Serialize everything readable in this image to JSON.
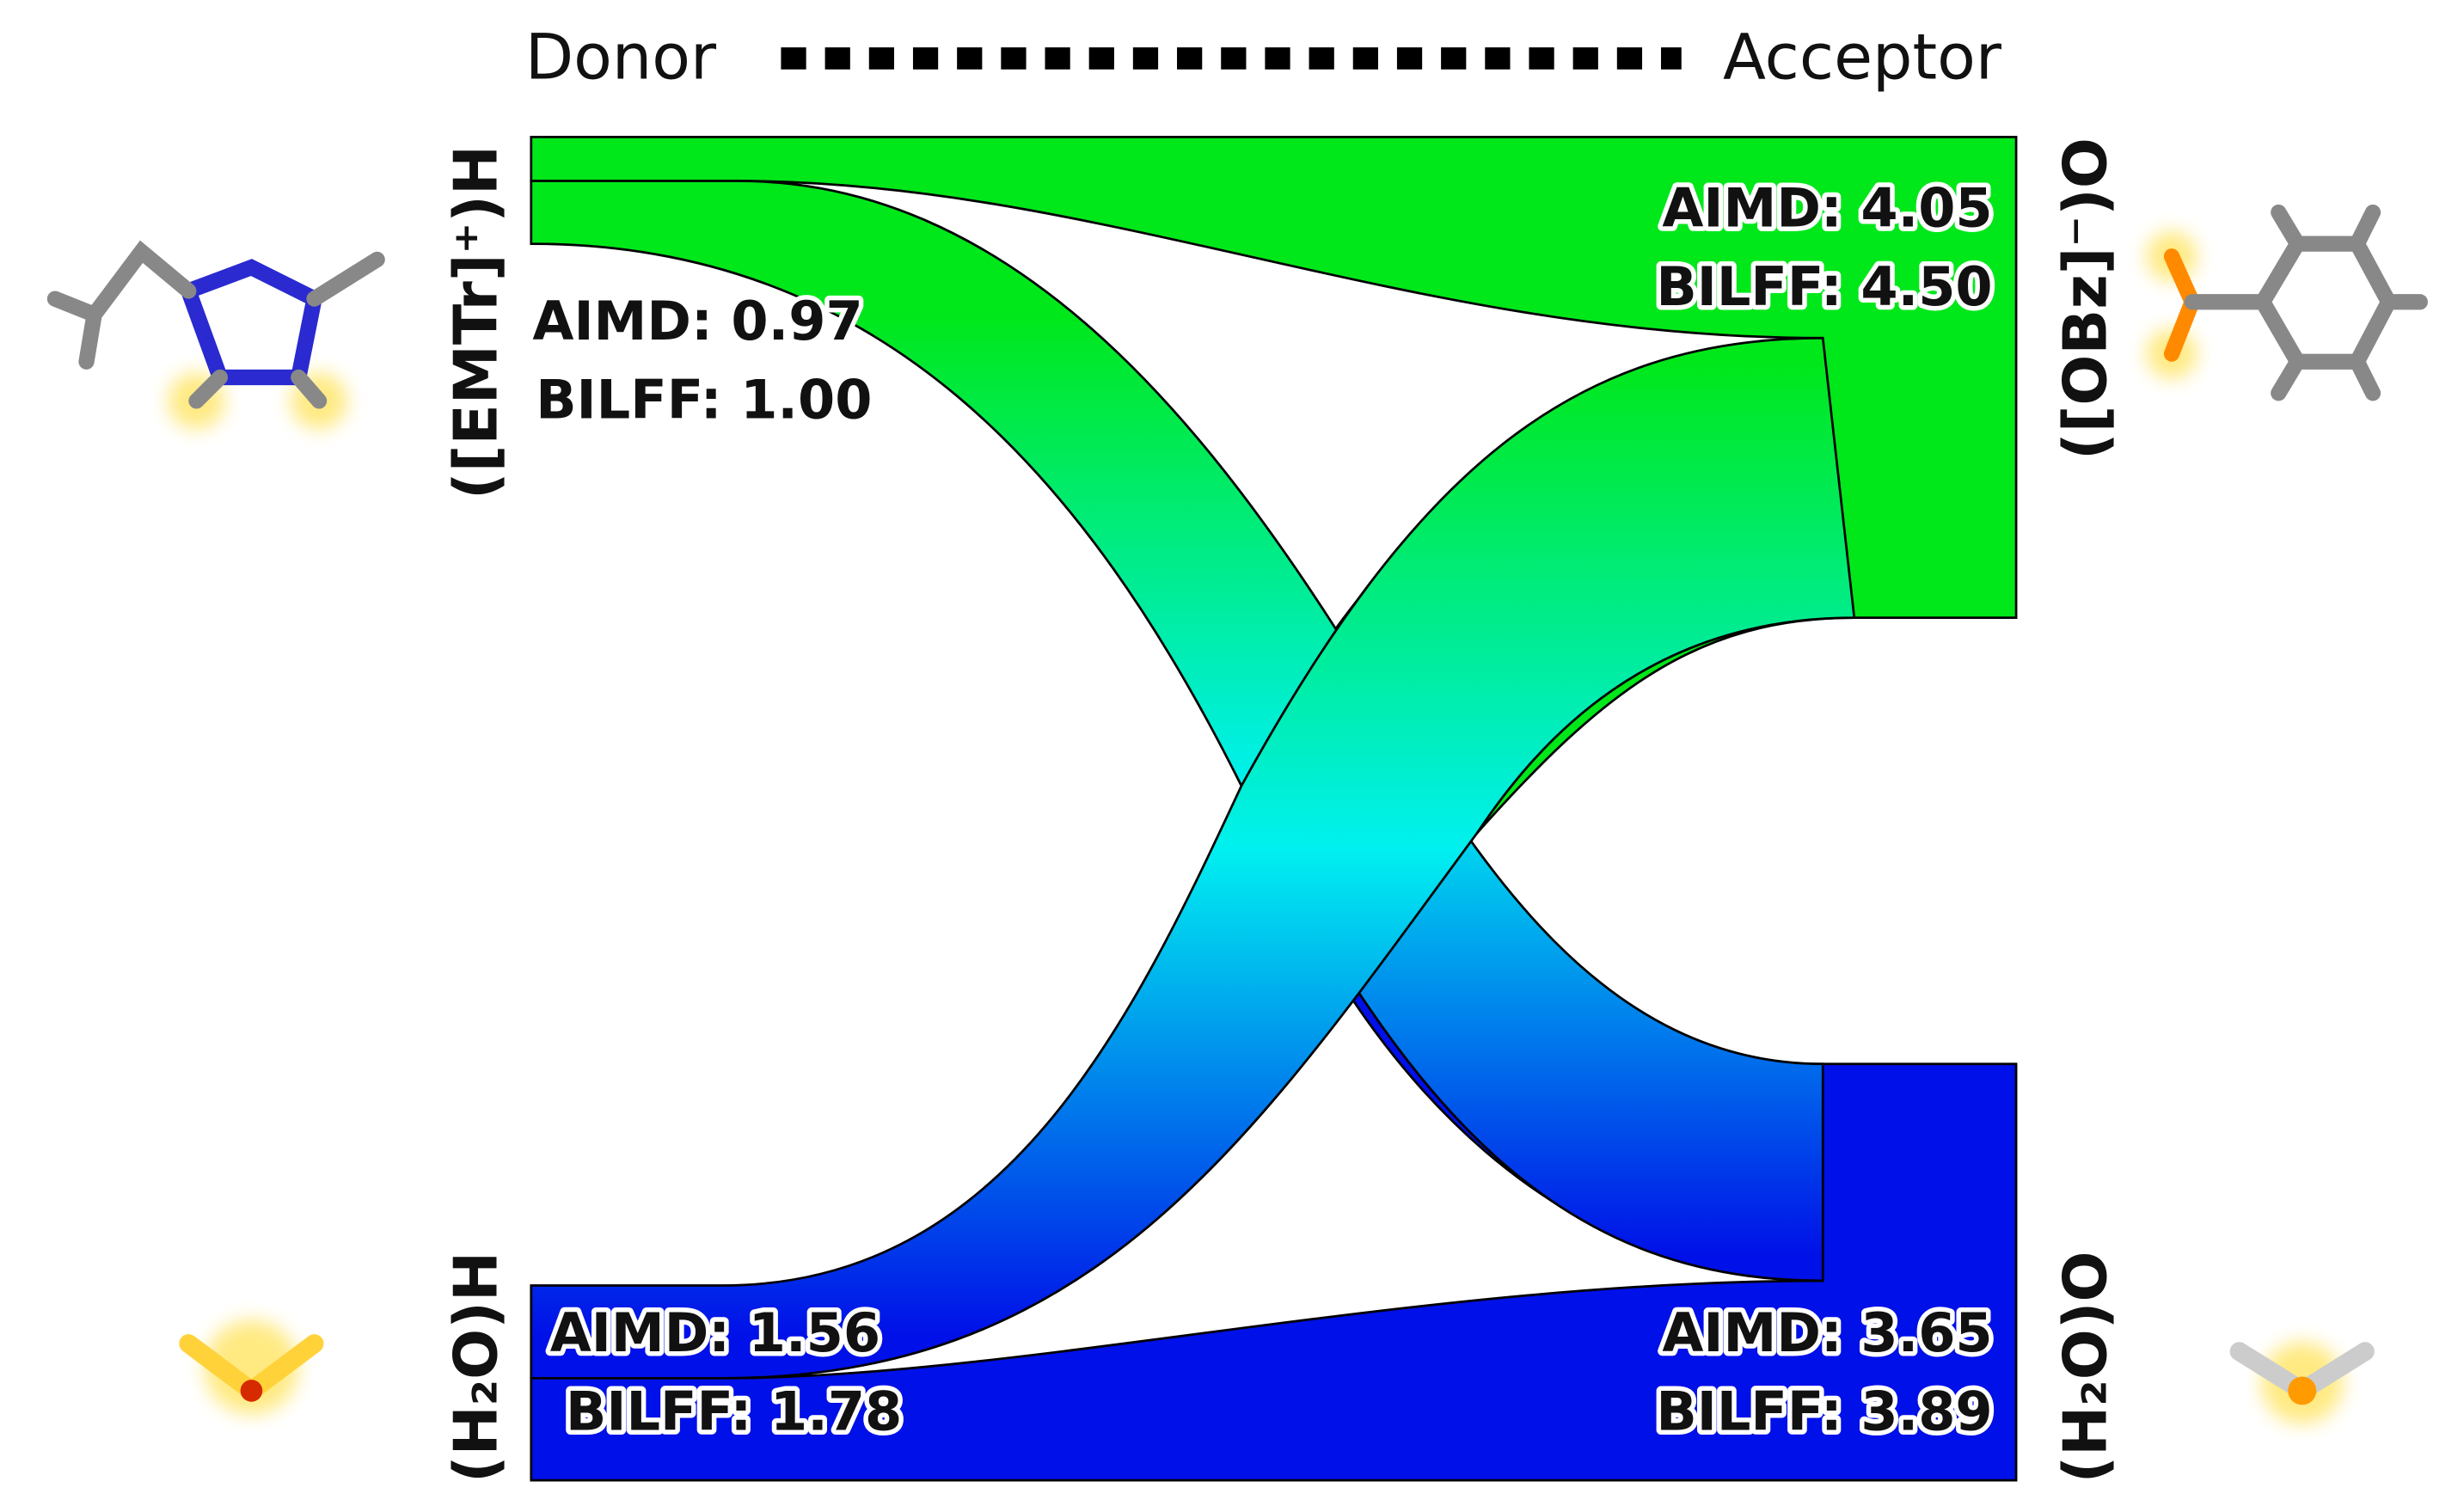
{
  "header": {
    "left": "Donor",
    "right": "Acceptor"
  },
  "nodes": [
    {
      "label": "([EMTr]⁺)H",
      "aimd": "AIMD: 0.97",
      "bilff": "BILFF: 1.00"
    },
    {
      "label": "([OBz]⁻)O",
      "aimd": "AIMD: 4.05",
      "bilff": "BILFF: 4.50"
    },
    {
      "label": "(H₂O)H",
      "aimd": "AIMD: 1.56",
      "bilff": "BILFF: 1.78"
    },
    {
      "label": "(H₂O)O",
      "aimd": "AIMD: 3.65",
      "bilff": "BILFF: 3.89"
    }
  ]
}
